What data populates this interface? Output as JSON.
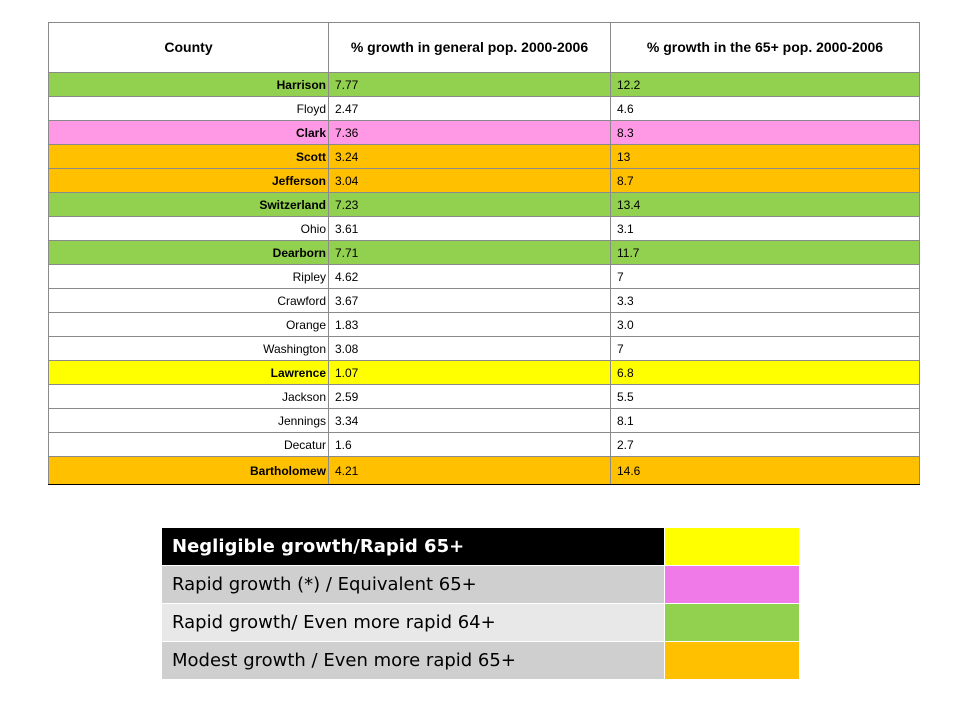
{
  "table": {
    "headers": [
      "County",
      "% growth in general pop. 2000-2006",
      "% growth in the 65+ pop. 2000-2006"
    ],
    "rows": [
      {
        "county": "Harrison",
        "general": "7.77",
        "senior": "12.2",
        "color": "#92D050",
        "bold": true
      },
      {
        "county": "Floyd",
        "general": "2.47",
        "senior": "4.6",
        "color": "#FFFFFF",
        "bold": false
      },
      {
        "county": "Clark",
        "general": "7.36",
        "senior": "8.3",
        "color": "#FF99E6",
        "bold": true
      },
      {
        "county": "Scott",
        "general": "3.24",
        "senior": "13",
        "color": "#FFC000",
        "bold": true
      },
      {
        "county": "Jefferson",
        "general": "3.04",
        "senior": "8.7",
        "color": "#FFC000",
        "bold": true
      },
      {
        "county": "Switzerland",
        "general": "7.23",
        "senior": "13.4",
        "color": "#92D050",
        "bold": true
      },
      {
        "county": "Ohio",
        "general": "3.61",
        "senior": "3.1",
        "color": "#FFFFFF",
        "bold": false
      },
      {
        "county": "Dearborn",
        "general": "7.71",
        "senior": "11.7",
        "color": "#92D050",
        "bold": true
      },
      {
        "county": "Ripley",
        "general": "4.62",
        "senior": "7",
        "color": "#FFFFFF",
        "bold": false
      },
      {
        "county": "Crawford",
        "general": "3.67",
        "senior": "3.3",
        "color": "#FFFFFF",
        "bold": false
      },
      {
        "county": "Orange",
        "general": "1.83",
        "senior": "3.0",
        "color": "#FFFFFF",
        "bold": false
      },
      {
        "county": "Washington",
        "general": "3.08",
        "senior": "7",
        "color": "#FFFFFF",
        "bold": false
      },
      {
        "county": "Lawrence",
        "general": "1.07",
        "senior": "6.8",
        "color": "#FFFF00",
        "bold": true
      },
      {
        "county": "Jackson",
        "general": "2.59",
        "senior": "5.5",
        "color": "#FFFFFF",
        "bold": false
      },
      {
        "county": "Jennings",
        "general": "3.34",
        "senior": "8.1",
        "color": "#FFFFFF",
        "bold": false
      },
      {
        "county": "Decatur",
        "general": "1.6",
        "senior": "2.7",
        "color": "#FFFFFF",
        "bold": false
      },
      {
        "county": "Bartholomew",
        "general": "4.21",
        "senior": "14.6",
        "color": "#FFC000",
        "bold": true
      }
    ]
  },
  "legend": {
    "items": [
      {
        "label": "Negligible growth/Rapid 65+",
        "label_bg": "#000000",
        "label_color": "#FFFFFF",
        "bold": true,
        "swatch": "#FFFF00"
      },
      {
        "label": "Rapid growth (*) / Equivalent 65+",
        "label_bg": "#CFCFCF",
        "label_color": "#000000",
        "bold": false,
        "swatch": "#F07AE8"
      },
      {
        "label": "Rapid growth/ Even more rapid 64+",
        "label_bg": "#E8E8E8",
        "label_color": "#000000",
        "bold": false,
        "swatch": "#92D050"
      },
      {
        "label": "Modest growth / Even more rapid 65+",
        "label_bg": "#CFCFCF",
        "label_color": "#000000",
        "bold": false,
        "swatch": "#FFC000"
      }
    ]
  }
}
